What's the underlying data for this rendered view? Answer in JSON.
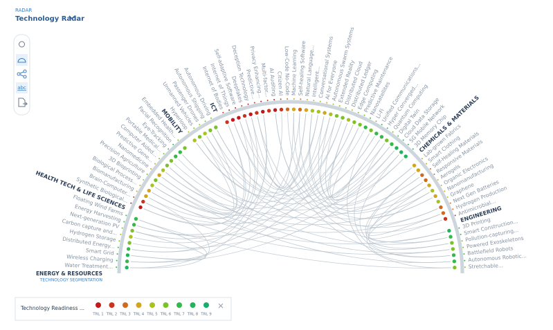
{
  "header": {
    "section": "RADAR",
    "title": "Technology Radar"
  },
  "toolbar": {
    "text_icon": "abc"
  },
  "radar": {
    "segmentation_label": "TECHNOLOGY SEGMENTATION",
    "groups": [
      {
        "name": "ENERGY & RESOURCES",
        "items": [
          {
            "label": "Water Treatment...",
            "trl": 8
          },
          {
            "label": "Wireless Charging",
            "trl": 7
          },
          {
            "label": "Smart Grid",
            "trl": 8
          },
          {
            "label": "Distributed Energy...",
            "trl": 7
          },
          {
            "label": "Hydrogen Storage",
            "trl": 6
          },
          {
            "label": "Carbon capture and...",
            "trl": 5
          },
          {
            "label": "Next-generation PV",
            "trl": 6
          },
          {
            "label": "Energy Harvesting",
            "trl": 7
          },
          {
            "label": "Floating Wind Farms",
            "trl": 7
          }
        ]
      },
      {
        "name": "HEALTH TECH & LIFE SCIENCES",
        "items": [
          {
            "label": "Synthetic Biological...",
            "trl": 1
          },
          {
            "label": "Brain-Computer...",
            "trl": 2
          },
          {
            "label": "Biomanufacturing",
            "trl": 4
          },
          {
            "label": "Biological Process...",
            "trl": 4
          },
          {
            "label": "3D Bioprinting",
            "trl": 5
          },
          {
            "label": "Precision Agriculture",
            "trl": 6
          },
          {
            "label": "Nanomedicine",
            "trl": 4
          },
          {
            "label": "Predictive Gene...",
            "trl": 5
          },
          {
            "label": "Computer Aided...",
            "trl": 6
          },
          {
            "label": "Portable Medical...",
            "trl": 6
          },
          {
            "label": "Eye-Tracking",
            "trl": 7
          },
          {
            "label": "Facial Recognition",
            "trl": 7
          },
          {
            "label": "Embedded Health...",
            "trl": 6
          }
        ]
      },
      {
        "name": "MOBILITY",
        "items": [
          {
            "label": "Hyperloop",
            "trl": 5
          },
          {
            "label": "Unmanned Vehicles",
            "trl": 6
          },
          {
            "label": "Passenger Drones",
            "trl": 5
          },
          {
            "label": "Autonomous Shipping",
            "trl": 6
          },
          {
            "label": "Autonomous Driving",
            "trl": 6
          }
        ]
      },
      {
        "name": "ICT",
        "items": [
          {
            "label": "Internet of Bodies",
            "trl": 2
          },
          {
            "label": "Internet of Things",
            "trl": 1
          },
          {
            "label": "Self-adaptive Software",
            "trl": 1
          },
          {
            "label": "Deepfakes",
            "trl": 2
          },
          {
            "label": "Deception Technology",
            "trl": 1
          },
          {
            "label": "Predictive...",
            "trl": 2
          },
          {
            "label": "Privacy Enhancing...",
            "trl": 1
          },
          {
            "label": "Multi-factor...",
            "trl": 2
          },
          {
            "label": "AI Auditing",
            "trl": 1
          },
          {
            "label": "Citizen AI",
            "trl": 2
          },
          {
            "label": "Low-Code No-Code",
            "trl": 3
          },
          {
            "label": "Machine Learning",
            "trl": 4
          },
          {
            "label": "Self-healing Software",
            "trl": 3
          },
          {
            "label": "Natural Language...",
            "trl": 4
          },
          {
            "label": "Intelligent...",
            "trl": 5
          },
          {
            "label": "Conversational Systems",
            "trl": 5
          },
          {
            "label": "AI for Everyone",
            "trl": 4
          },
          {
            "label": "Autonomous Swarm Systems",
            "trl": 5
          },
          {
            "label": "Extended Reality",
            "trl": 6
          },
          {
            "label": "Distributed Cloud",
            "trl": 6
          },
          {
            "label": "Distributed Ledger",
            "trl": 5
          },
          {
            "label": "Edge Computing",
            "trl": 6
          },
          {
            "label": "Predictive Maintenance",
            "trl": 6
          },
          {
            "label": "Nanosatellites",
            "trl": 7
          },
          {
            "label": "Li-Fi",
            "trl": 6
          },
          {
            "label": "Unified Communications...",
            "trl": 7
          },
          {
            "label": "Hyper Converged...",
            "trl": 7
          },
          {
            "label": "Quantum Computing",
            "trl": 6
          },
          {
            "label": "Digital Twin",
            "trl": 7
          },
          {
            "label": "Cloud Data Storage",
            "trl": 8
          },
          {
            "label": "5G Mobile Network",
            "trl": 8
          },
          {
            "label": "3D Memory Chip",
            "trl": 8
          }
        ]
      },
      {
        "name": "CHEMICALS & MATERIALS",
        "items": [
          {
            "label": "Lab-grown Fabrics",
            "trl": 4
          },
          {
            "label": "Smart Clothing",
            "trl": 4
          },
          {
            "label": "Self-Healing Materials",
            "trl": 3
          },
          {
            "label": "Responsive Materials",
            "trl": 3
          },
          {
            "label": "Aerogels",
            "trl": 4
          },
          {
            "label": "Organic Electronics",
            "trl": 5
          },
          {
            "label": "Nanomanufacturing",
            "trl": 4
          },
          {
            "label": "Graphene",
            "trl": 5
          },
          {
            "label": "Next Gen Batteries",
            "trl": 3
          },
          {
            "label": "Hydrogen Production",
            "trl": 3
          },
          {
            "label": "Antimicrobial...",
            "trl": 2
          }
        ]
      },
      {
        "name": "ENGINEERING",
        "items": [
          {
            "label": "3D Printing",
            "trl": 8
          },
          {
            "label": "Smart Construction...",
            "trl": 7
          },
          {
            "label": "Pollution-capturing...",
            "trl": 6
          },
          {
            "label": "Powered Exoskeletons",
            "trl": 6
          },
          {
            "label": "Battlefield Robots",
            "trl": 7
          },
          {
            "label": "Autonomous Robotic...",
            "trl": 7
          },
          {
            "label": "Stretchable...",
            "trl": 6
          }
        ]
      }
    ]
  },
  "legend": {
    "title": "Technology Readiness ...",
    "levels": [
      {
        "label": "TRL 1",
        "color": "#c1171d"
      },
      {
        "label": "TRL 2",
        "color": "#c8341e"
      },
      {
        "label": "TRL 3",
        "color": "#cf6a1f"
      },
      {
        "label": "TRL 4",
        "color": "#d2a51c"
      },
      {
        "label": "TRL 5",
        "color": "#a8c320"
      },
      {
        "label": "TRL 6",
        "color": "#7cc12a"
      },
      {
        "label": "TRL 7",
        "color": "#35b94a"
      },
      {
        "label": "TRL 8",
        "color": "#1fb55b"
      },
      {
        "label": "TRL 9",
        "color": "#17ae6c"
      }
    ]
  }
}
